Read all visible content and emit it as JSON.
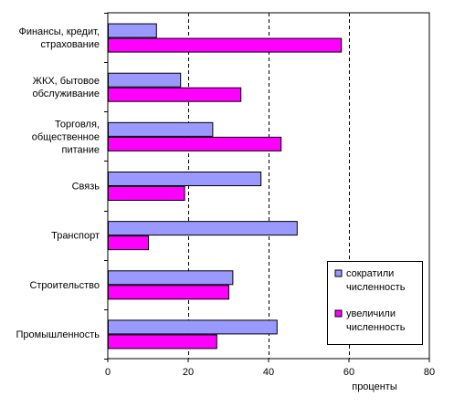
{
  "chart_data": {
    "type": "bar",
    "orientation": "horizontal",
    "categories": [
      [
        "Финансы, кредит,",
        "страхование"
      ],
      [
        "ЖКХ, бытовое",
        "обслуживание"
      ],
      [
        "Торговля,",
        "общественное",
        "питание"
      ],
      [
        "Связь"
      ],
      [
        "Транспорт"
      ],
      [
        "Строительство"
      ],
      [
        "Промышленность"
      ]
    ],
    "series": [
      {
        "name": "сократили численность",
        "legend_lines": [
          "сократили",
          "численность"
        ],
        "color": "#9999ff",
        "values": [
          12,
          18,
          26,
          38,
          47,
          31,
          42
        ]
      },
      {
        "name": "увеличили численность",
        "legend_lines": [
          "увеличили",
          "численность"
        ],
        "color": "#ff00ff",
        "values": [
          58,
          33,
          43,
          19,
          10,
          30,
          27
        ]
      }
    ],
    "xlim": [
      0,
      80
    ],
    "xticks": [
      0,
      20,
      40,
      60,
      80
    ],
    "xlabel": "проценты",
    "grid": "vertical-dashed",
    "legend_position": "bottom-right"
  }
}
